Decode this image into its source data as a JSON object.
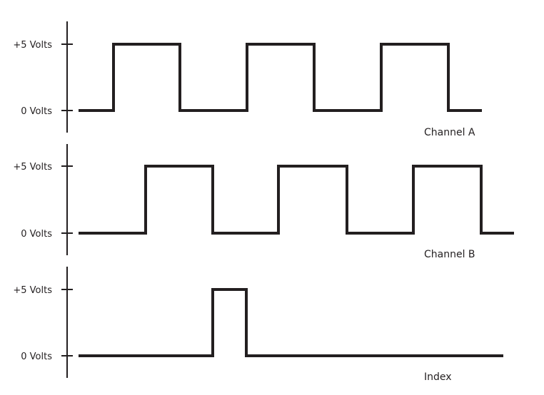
{
  "diagram": {
    "level_high_label": "+5 Volts",
    "level_low_label": "0 Volts",
    "channels": [
      {
        "id": "a",
        "label": "Channel A"
      },
      {
        "id": "b",
        "label": "Channel B"
      },
      {
        "id": "index",
        "label": "Index"
      }
    ]
  }
}
